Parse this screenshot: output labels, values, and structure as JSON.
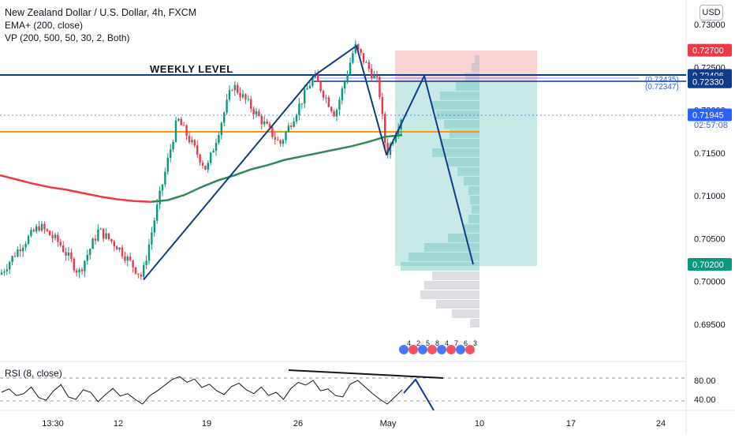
{
  "legend": {
    "title": "New Zealand Dollar / U.S. Dollar, 4h, FXCM",
    "ema": "EMA+ (200, close)",
    "vp": "VP (200, 500, 50, 30, 2, Both)",
    "rsi": "RSI (8, close)"
  },
  "currency_badge": "USD",
  "annotations": {
    "weekly_level": "WEEKLY LEVEL",
    "level_a": "(0.72435)",
    "level_b": "(0.72347)",
    "countdown": "02:57:08",
    "event_counts": [
      "4",
      "2",
      "5",
      "8",
      "4",
      "7",
      "6",
      "3"
    ]
  },
  "chart_data": [
    {
      "type": "line",
      "title": "New Zealand Dollar / U.S. Dollar, 4h, FXCM",
      "y_ticks": [
        "0.73000",
        "0.72500",
        "0.72000",
        "0.71500",
        "0.71000",
        "0.70500",
        "0.70000",
        "0.69500"
      ],
      "x_ticks": [
        "13:30",
        "12",
        "19",
        "26",
        "May",
        "10",
        "17",
        "24"
      ],
      "price_labels": [
        {
          "value": "0.72700",
          "color": "#f23645"
        },
        {
          "value": "0.72406",
          "color": "#0d3b8e"
        },
        {
          "value": "0.72330",
          "color": "#0d3b8e"
        },
        {
          "value": "0.71945",
          "color": "#2962ff"
        },
        {
          "value": "0.70200",
          "color": "#089981"
        }
      ],
      "levels": {
        "weekly_level": 0.72406,
        "level_2": 0.7233,
        "orange_line": 0.718,
        "current_price": 0.71945,
        "stop": 0.727,
        "entry": 0.7233,
        "target": 0.702
      },
      "series": [
        {
          "name": "EMA+ (200, close)",
          "values": [
            0.7124,
            0.7119,
            0.7114,
            0.711,
            0.7107,
            0.7103,
            0.7099,
            0.7096,
            0.7094,
            0.7093,
            0.7095,
            0.7101,
            0.711,
            0.7118,
            0.7124,
            0.7131,
            0.7136,
            0.7142,
            0.7146,
            0.715,
            0.7154,
            0.7158,
            0.7163,
            0.7169,
            0.7171
          ]
        }
      ],
      "pattern_path": [
        0.7002,
        0.724,
        0.7275,
        0.7148,
        0.724,
        0.702
      ],
      "colors": {
        "up": "#089981",
        "down": "#f23645",
        "ema_below": "#f23645",
        "ema_above": "#2e8b57",
        "pattern": "#0d3b8e",
        "orange": "#ff9800",
        "tp_zone": "#b2dfdb",
        "sl_zone": "#f8c4c4"
      }
    },
    {
      "type": "line",
      "title": "RSI (8, close)",
      "y_ticks": [
        "80.00",
        "40.00"
      ],
      "ylim": [
        20,
        100
      ],
      "series": [
        {
          "name": "RSI (8, close)",
          "values": [
            55,
            62,
            48,
            52,
            66,
            44,
            38,
            58,
            71,
            45,
            40,
            60,
            55,
            35,
            50,
            63,
            47,
            52,
            40,
            30,
            48,
            58,
            70,
            82,
            88,
            76,
            83,
            65,
            72,
            58,
            50,
            67,
            74,
            60,
            52,
            66,
            48,
            55,
            40,
            63,
            76,
            70,
            80,
            58,
            62,
            48,
            45,
            72,
            80,
            66,
            52,
            40,
            30,
            45,
            60
          ]
        }
      ]
    }
  ]
}
